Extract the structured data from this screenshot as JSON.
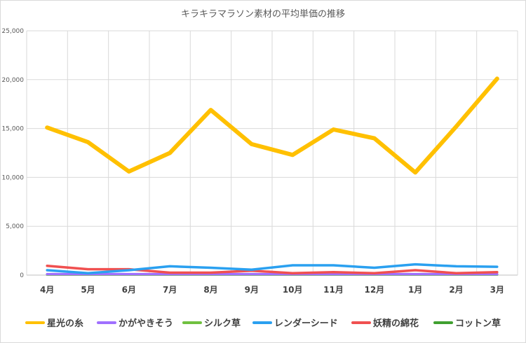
{
  "chart_data": {
    "type": "line",
    "title": "キラキラマラソン素材の平均単価の推移",
    "categories": [
      "4月",
      "5月",
      "6月",
      "7月",
      "8月",
      "9月",
      "10月",
      "11月",
      "12月",
      "1月",
      "2月",
      "3月"
    ],
    "ylim": [
      0,
      25000
    ],
    "yticks": [
      "0",
      "5,000",
      "10,000",
      "15,000",
      "20,000",
      "25,000"
    ],
    "ytick_values": [
      0,
      5000,
      10000,
      15000,
      20000,
      25000
    ],
    "grid": true,
    "legend_position": "bottom",
    "series": [
      {
        "name": "星光の糸",
        "color": "#ffc000",
        "width": 6,
        "values": [
          15100,
          13600,
          10600,
          12500,
          16900,
          13400,
          12300,
          14900,
          14000,
          10500,
          15200,
          20100
        ]
      },
      {
        "name": "かがやきそう",
        "color": "#a070ff",
        "width": 3.5,
        "values": [
          100,
          100,
          100,
          100,
          100,
          100,
          100,
          100,
          100,
          100,
          100,
          100
        ]
      },
      {
        "name": "シルク草",
        "color": "#70c040",
        "width": 3.5,
        "values": [
          50,
          50,
          50,
          50,
          50,
          50,
          50,
          50,
          50,
          50,
          50,
          50
        ]
      },
      {
        "name": "レンダーシード",
        "color": "#2aa0f0",
        "width": 3.5,
        "values": [
          500,
          200,
          500,
          900,
          750,
          550,
          1000,
          1000,
          750,
          1100,
          900,
          850
        ]
      },
      {
        "name": "妖精の綿花",
        "color": "#f05050",
        "width": 3.5,
        "values": [
          950,
          600,
          600,
          250,
          250,
          450,
          200,
          300,
          200,
          500,
          200,
          300
        ]
      },
      {
        "name": "コットン草",
        "color": "#40a030",
        "width": 2.5,
        "values": [
          20,
          20,
          20,
          20,
          20,
          20,
          20,
          20,
          20,
          20,
          20,
          20
        ]
      }
    ]
  }
}
